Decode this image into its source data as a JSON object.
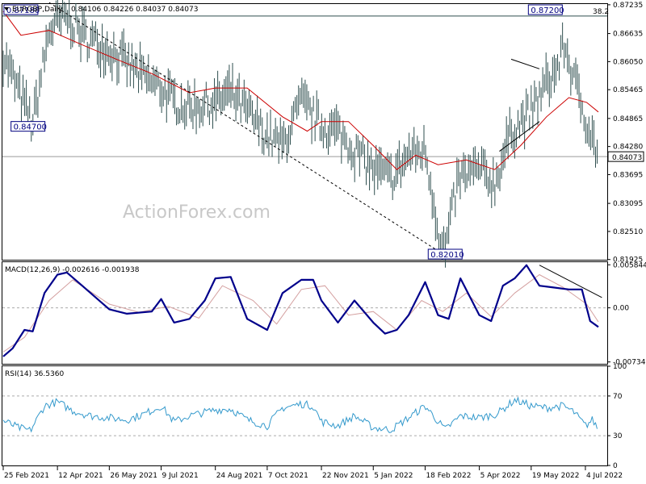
{
  "header": {
    "symbol": "EURGBP,Daily",
    "ohlc": "0.84106 0.84226 0.84037 0.84073"
  },
  "watermark": "ActionForex.com",
  "colors": {
    "bars": "#2f4f4f",
    "ma": "#cc0000",
    "macd": "#00008b",
    "signal": "#d4a0a0",
    "rsi": "#3399cc",
    "annotation": "#000080"
  },
  "chart_data": [
    {
      "type": "line",
      "title": "EURGBP,Daily",
      "ylim": [
        0.8192,
        0.8725
      ],
      "y_ticks": [
        "0.87235",
        "0.86635",
        "0.86050",
        "0.85465",
        "0.84865",
        "0.84280",
        "0.83695",
        "0.83095",
        "0.82510",
        "0.81925"
      ],
      "x_ticks": [
        "25 Feb 2021",
        "12 Apr 2021",
        "26 May 2021",
        "9 Jul 2021",
        "24 Aug 2021",
        "7 Oct 2021",
        "22 Nov 2021",
        "5 Jan 2022",
        "18 Feb 2022",
        "5 Apr 2022",
        "19 May 2022",
        "4 Jul 2022"
      ],
      "x_tick_dates": [
        "2021-02-25",
        "2021-04-12",
        "2021-05-26",
        "2021-07-09",
        "2021-08-24",
        "2021-10-07",
        "2021-11-22",
        "2022-01-05",
        "2022-02-18",
        "2022-04-05",
        "2022-05-19",
        "2022-07-04"
      ],
      "last_date": "2022-07-15",
      "series": [
        {
          "kind": "price-bars",
          "x": [
            "2021-02-25",
            "2021-03-12",
            "2021-03-22",
            "2021-04-05",
            "2021-04-20",
            "2021-05-03",
            "2021-05-26",
            "2021-06-10",
            "2021-06-25",
            "2021-07-09",
            "2021-07-20",
            "2021-08-02",
            "2021-08-24",
            "2021-09-06",
            "2021-09-20",
            "2021-10-07",
            "2021-10-20",
            "2021-11-05",
            "2021-11-22",
            "2021-12-06",
            "2021-12-20",
            "2022-01-05",
            "2022-01-20",
            "2022-02-04",
            "2022-02-18",
            "2022-03-04",
            "2022-03-07",
            "2022-03-18",
            "2022-04-05",
            "2022-04-18",
            "2022-05-02",
            "2022-05-19",
            "2022-06-01",
            "2022-06-10",
            "2022-06-16",
            "2022-06-24",
            "2022-07-04",
            "2022-07-15"
          ],
          "values": [
            0.862,
            0.853,
            0.8475,
            0.867,
            0.87,
            0.866,
            0.863,
            0.86,
            0.857,
            0.855,
            0.852,
            0.851,
            0.852,
            0.854,
            0.85,
            0.845,
            0.843,
            0.852,
            0.847,
            0.846,
            0.842,
            0.838,
            0.836,
            0.841,
            0.842,
            0.8215,
            0.821,
            0.836,
            0.838,
            0.835,
            0.846,
            0.85,
            0.856,
            0.859,
            0.864,
            0.857,
            0.849,
            0.8407
          ]
        },
        {
          "name": "",
          "kind": "moving-average",
          "x": [
            "2021-02-25",
            "2021-03-12",
            "2021-04-05",
            "2021-05-03",
            "2021-06-01",
            "2021-07-01",
            "2021-08-02",
            "2021-08-24",
            "2021-09-20",
            "2021-10-20",
            "2021-11-10",
            "2021-11-22",
            "2021-12-15",
            "2022-01-05",
            "2022-01-25",
            "2022-02-10",
            "2022-03-01",
            "2022-03-25",
            "2022-04-18",
            "2022-05-10",
            "2022-06-01",
            "2022-06-20",
            "2022-07-05",
            "2022-07-15"
          ],
          "values": [
            0.871,
            0.866,
            0.867,
            0.864,
            0.861,
            0.858,
            0.854,
            0.855,
            0.855,
            0.849,
            0.846,
            0.848,
            0.848,
            0.843,
            0.838,
            0.841,
            0.839,
            0.84,
            0.838,
            0.843,
            0.849,
            0.853,
            0.852,
            0.85
          ]
        }
      ],
      "reference_lines": [
        {
          "value": 0.87,
          "label": "38.2"
        },
        {
          "value": 0.8407,
          "label": ""
        }
      ],
      "annotations": [
        {
          "text": "0.87180",
          "x": "2021-03-12",
          "y": 0.8718
        },
        {
          "text": "0.84700",
          "x": "2021-03-18",
          "y": 0.847
        },
        {
          "text": "0.87200",
          "x": "2022-05-31",
          "y": 0.872
        },
        {
          "text": "0.82010",
          "x": "2022-03-07",
          "y": 0.8201
        }
      ],
      "last_value_label": "0.84073",
      "trendlines": [
        {
          "style": "dashed",
          "from": [
            "2021-04-05",
            0.8728
          ],
          "to": [
            "2022-03-07",
            0.8201
          ]
        },
        {
          "style": "solid",
          "from": [
            "2022-04-22",
            0.8418
          ],
          "to": [
            "2022-05-26",
            0.848
          ]
        },
        {
          "style": "solid",
          "from": [
            "2022-05-02",
            0.861
          ],
          "to": [
            "2022-05-26",
            0.859
          ]
        }
      ]
    },
    {
      "type": "line",
      "title": "MACD(12,26,9) -0.002616 -0.001938",
      "ylim": [
        -0.0076,
        0.0062
      ],
      "y_ticks": [
        "0.005844",
        "0.00",
        "-0.007346"
      ],
      "zero_line": 0,
      "series": [
        {
          "name": "",
          "x": [
            "2021-02-25",
            "2021-03-05",
            "2021-03-15",
            "2021-03-22",
            "2021-04-01",
            "2021-04-12",
            "2021-04-20",
            "2021-05-03",
            "2021-05-26",
            "2021-06-10",
            "2021-07-01",
            "2021-07-09",
            "2021-07-20",
            "2021-08-02",
            "2021-08-15",
            "2021-08-24",
            "2021-09-06",
            "2021-09-20",
            "2021-10-07",
            "2021-10-20",
            "2021-11-05",
            "2021-11-15",
            "2021-11-22",
            "2021-12-06",
            "2021-12-20",
            "2022-01-05",
            "2022-01-15",
            "2022-01-25",
            "2022-02-04",
            "2022-02-18",
            "2022-03-01",
            "2022-03-10",
            "2022-03-20",
            "2022-04-05",
            "2022-04-15",
            "2022-04-25",
            "2022-05-05",
            "2022-05-15",
            "2022-05-26",
            "2022-06-05",
            "2022-06-20",
            "2022-07-01",
            "2022-07-08",
            "2022-07-15"
          ],
          "values": [
            -0.0066,
            -0.0055,
            -0.003,
            -0.0032,
            0.002,
            0.0045,
            0.0048,
            0.003,
            -0.0002,
            -0.0008,
            -0.0005,
            0.0012,
            -0.002,
            -0.0015,
            0.001,
            0.004,
            0.0042,
            -0.0015,
            -0.003,
            0.002,
            0.0038,
            0.0038,
            0.001,
            -0.002,
            0.001,
            -0.002,
            -0.0035,
            -0.003,
            -0.001,
            0.0035,
            -0.001,
            -0.0015,
            0.004,
            -0.001,
            -0.0018,
            0.003,
            0.004,
            0.0058,
            0.003,
            0.0028,
            0.0025,
            0.0025,
            -0.0018,
            -0.0026
          ]
        },
        {
          "name": "",
          "x": [
            "2021-02-25",
            "2021-03-15",
            "2021-04-05",
            "2021-04-25",
            "2021-05-26",
            "2021-06-20",
            "2021-07-15",
            "2021-08-10",
            "2021-08-30",
            "2021-09-25",
            "2021-10-15",
            "2021-11-05",
            "2021-11-25",
            "2021-12-15",
            "2022-01-05",
            "2022-01-25",
            "2022-02-15",
            "2022-03-05",
            "2022-03-25",
            "2022-04-15",
            "2022-05-05",
            "2022-05-26",
            "2022-06-15",
            "2022-07-05",
            "2022-07-15"
          ],
          "values": [
            -0.006,
            -0.004,
            0.001,
            0.0038,
            0.0005,
            -0.0006,
            0.0002,
            -0.0014,
            0.003,
            0.001,
            -0.0022,
            0.0025,
            0.003,
            -0.001,
            -0.0005,
            -0.003,
            0.001,
            -0.0005,
            0.002,
            -0.0012,
            0.002,
            0.0045,
            0.0028,
            0.0005,
            -0.0019
          ]
        }
      ],
      "trendlines": [
        {
          "style": "solid",
          "from": [
            "2022-05-26",
            0.0058
          ],
          "to": [
            "2022-07-18",
            0.0014
          ]
        }
      ]
    },
    {
      "type": "line",
      "title": "RSI(14) 36.5360",
      "ylim": [
        0,
        100
      ],
      "y_ticks": [
        "100",
        "70",
        "30",
        "0"
      ],
      "levels": [
        70,
        30
      ],
      "series": [
        {
          "name": "",
          "x": [
            "2021-02-25",
            "2021-03-10",
            "2021-03-20",
            "2021-04-01",
            "2021-04-12",
            "2021-04-25",
            "2021-05-10",
            "2021-05-26",
            "2021-06-10",
            "2021-06-25",
            "2021-07-09",
            "2021-07-20",
            "2021-08-02",
            "2021-08-24",
            "2021-09-06",
            "2021-09-20",
            "2021-10-07",
            "2021-10-20",
            "2021-11-05",
            "2021-11-15",
            "2021-11-22",
            "2021-12-06",
            "2021-12-20",
            "2022-01-05",
            "2022-01-20",
            "2022-02-04",
            "2022-02-18",
            "2022-03-07",
            "2022-03-20",
            "2022-04-05",
            "2022-04-20",
            "2022-05-05",
            "2022-05-19",
            "2022-06-01",
            "2022-06-15",
            "2022-06-24",
            "2022-07-04",
            "2022-07-10",
            "2022-07-15"
          ],
          "values": [
            45,
            38,
            35,
            60,
            64,
            55,
            50,
            48,
            46,
            52,
            60,
            44,
            50,
            56,
            57,
            46,
            40,
            58,
            62,
            60,
            44,
            40,
            50,
            38,
            36,
            48,
            60,
            36,
            50,
            48,
            52,
            66,
            60,
            58,
            60,
            54,
            40,
            46,
            36.5
          ]
        }
      ]
    }
  ]
}
